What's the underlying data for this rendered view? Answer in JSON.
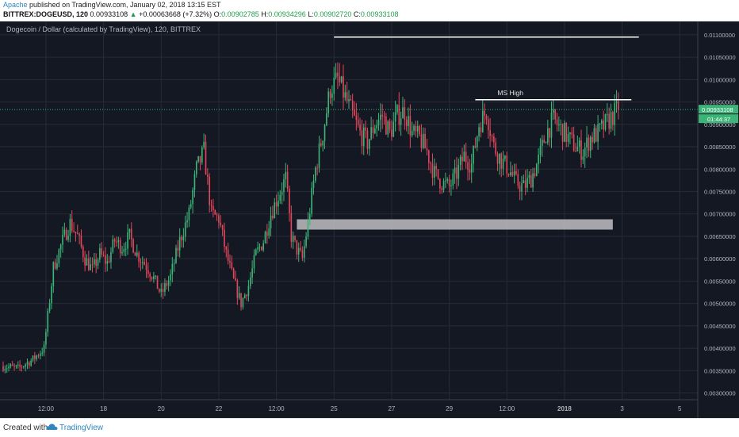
{
  "header": {
    "author": "Apache",
    "published": "published on TradingView.com, January 02, 2018 13:15 EST",
    "symbol": "BITTREX:DOGEUSD, 120",
    "last": "0.00933108",
    "arrow": "▲",
    "change": "+0.00063668 (+7.32%)",
    "o_label": "O:",
    "o_value": "0.00902785",
    "h_label": "H:",
    "h_value": "0.00934296",
    "l_label": "L:",
    "l_value": "0.00902720",
    "c_label": "C:",
    "c_value": "0.00933108"
  },
  "footer": {
    "created_with": "Created with",
    "brand": "TradingView"
  },
  "colors": {
    "background": "#141823",
    "grid": "#262b38",
    "up": "#3cb377",
    "down": "#e0475a",
    "text": "#b2b5be",
    "price_label_bg": "#3cb377"
  },
  "chart_data": {
    "type": "candlestick",
    "title": "Dogecoin / Dollar (calculated by TradingView), 120, BITTREX",
    "y_ticks": [
      "0.01100000",
      "0.01050000",
      "0.01000000",
      "0.00950000",
      "0.00900000",
      "0.00850000",
      "0.00800000",
      "0.00750000",
      "0.00700000",
      "0.00650000",
      "0.00600000",
      "0.00550000",
      "0.00500000",
      "0.00450000",
      "0.00400000",
      "0.00350000",
      "0.00300000"
    ],
    "ylim": [
      0.00285,
      0.0113
    ],
    "x_ticks": [
      "12:00",
      "18",
      "20",
      "22",
      "12:00",
      "25",
      "27",
      "29",
      "12:00",
      "2018",
      "3",
      "5"
    ],
    "x_tick_index": [
      23,
      54,
      85,
      116,
      147,
      178,
      209,
      240,
      271,
      302,
      333,
      364
    ],
    "x_range": [
      0,
      372
    ],
    "current_price": "0.00933108",
    "countdown": "01:44:37",
    "annotations": [
      {
        "type": "hline",
        "label": "",
        "y": 0.01095,
        "x_start": 178,
        "x_end": 342
      },
      {
        "type": "hline",
        "label": "MS High",
        "y": 0.00955,
        "x_start": 254,
        "x_end": 338
      },
      {
        "type": "zone",
        "label": "",
        "y_low": 0.00665,
        "y_high": 0.00688,
        "x_start": 158,
        "x_end": 328
      }
    ],
    "anchors": [
      [
        0,
        0.0036
      ],
      [
        8,
        0.00355
      ],
      [
        16,
        0.00375
      ],
      [
        22,
        0.004
      ],
      [
        27,
        0.0058
      ],
      [
        32,
        0.0064
      ],
      [
        36,
        0.0068
      ],
      [
        40,
        0.0065
      ],
      [
        44,
        0.006
      ],
      [
        48,
        0.00575
      ],
      [
        52,
        0.0061
      ],
      [
        56,
        0.0059
      ],
      [
        60,
        0.0064
      ],
      [
        64,
        0.00625
      ],
      [
        68,
        0.0065
      ],
      [
        72,
        0.0061
      ],
      [
        76,
        0.0059
      ],
      [
        80,
        0.00565
      ],
      [
        85,
        0.0052
      ],
      [
        90,
        0.0056
      ],
      [
        95,
        0.0064
      ],
      [
        100,
        0.007
      ],
      [
        104,
        0.008
      ],
      [
        108,
        0.0084
      ],
      [
        112,
        0.007
      ],
      [
        116,
        0.0069
      ],
      [
        120,
        0.0061
      ],
      [
        124,
        0.0055
      ],
      [
        128,
        0.005
      ],
      [
        132,
        0.0054
      ],
      [
        136,
        0.0061
      ],
      [
        140,
        0.0064
      ],
      [
        144,
        0.007
      ],
      [
        148,
        0.0074
      ],
      [
        152,
        0.0078
      ],
      [
        155,
        0.0065
      ],
      [
        158,
        0.0062
      ],
      [
        161,
        0.006
      ],
      [
        164,
        0.0068
      ],
      [
        168,
        0.008
      ],
      [
        172,
        0.0088
      ],
      [
        176,
        0.0098
      ],
      [
        180,
        0.01
      ],
      [
        184,
        0.0096
      ],
      [
        188,
        0.0092
      ],
      [
        192,
        0.0088
      ],
      [
        196,
        0.0086
      ],
      [
        200,
        0.009
      ],
      [
        204,
        0.0092
      ],
      [
        208,
        0.0088
      ],
      [
        212,
        0.0092
      ],
      [
        216,
        0.0093
      ],
      [
        220,
        0.0088
      ],
      [
        224,
        0.0087
      ],
      [
        228,
        0.0084
      ],
      [
        232,
        0.0079
      ],
      [
        236,
        0.0077
      ],
      [
        240,
        0.0076
      ],
      [
        244,
        0.0079
      ],
      [
        248,
        0.0083
      ],
      [
        252,
        0.0081
      ],
      [
        256,
        0.009
      ],
      [
        260,
        0.0093
      ],
      [
        264,
        0.0085
      ],
      [
        268,
        0.0082
      ],
      [
        272,
        0.008
      ],
      [
        276,
        0.0077
      ],
      [
        280,
        0.0076
      ],
      [
        284,
        0.0078
      ],
      [
        288,
        0.0082
      ],
      [
        292,
        0.0088
      ],
      [
        296,
        0.0091
      ],
      [
        300,
        0.0089
      ],
      [
        304,
        0.0087
      ],
      [
        308,
        0.0085
      ],
      [
        312,
        0.0084
      ],
      [
        316,
        0.0087
      ],
      [
        320,
        0.0088
      ],
      [
        324,
        0.009
      ],
      [
        328,
        0.0092
      ],
      [
        331,
        0.00935
      ]
    ]
  }
}
